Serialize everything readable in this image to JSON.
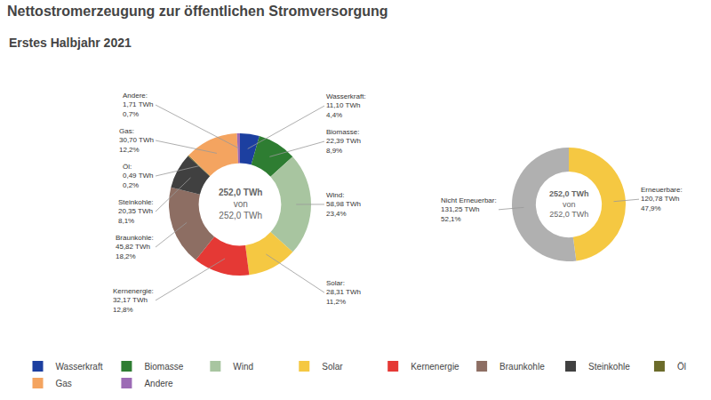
{
  "chart_data": [
    {
      "type": "pie",
      "title": "Nettostromerzeugung zur öffentlichen Stromversorgung",
      "subtitle": "Erstes Halbjahr 2021",
      "categories": [
        "Wasserkraft",
        "Biomasse",
        "Wind",
        "Solar",
        "Kernenergie",
        "Braunkohle",
        "Steinkohle",
        "Öl",
        "Gas",
        "Andere"
      ],
      "annotation_labels": [
        "Wasserkraft:",
        "Biomasse:",
        "Wind:",
        "Solar:",
        "Kernenergie:",
        "Braunkohle:",
        "Steinkohle:",
        "Öl:",
        "Gas:",
        "Andere:"
      ],
      "values": [
        11.1,
        22.39,
        58.98,
        28.31,
        32.17,
        45.82,
        20.35,
        0.49,
        30.7,
        1.71
      ],
      "value_labels": [
        "11,10 TWh",
        "22,39 TWh",
        "58,98 TWh",
        "28,31 TWh",
        "32,17 TWh",
        "45,82 TWh",
        "20,35 TWh",
        "0,49 TWh",
        "30,70 TWh",
        "1,71 TWh"
      ],
      "percent_labels": [
        "4,4%",
        "8,9%",
        "23,4%",
        "11,2%",
        "12,8%",
        "18,2%",
        "8,1%",
        "0,2%",
        "12,2%",
        "0,7%"
      ],
      "colors": [
        "#1c3fa0",
        "#2e7d32",
        "#a8c5a0",
        "#f5c842",
        "#e53935",
        "#8d6e63",
        "#404040",
        "#6b6b2a",
        "#f4a460",
        "#9c6bb5"
      ],
      "annotations": [
        "252,0 TWh",
        "von",
        "252,0 TWh"
      ],
      "legend": "bottom"
    },
    {
      "type": "pie",
      "categories": [
        "Erneuerbare:",
        "Nicht Erneuerbar:"
      ],
      "values": [
        120.78,
        131.25
      ],
      "value_labels": [
        "120,78 TWh",
        "131,25 TWh"
      ],
      "percent_labels": [
        "47,9%",
        "52,1%"
      ],
      "colors": [
        "#f5c842",
        "#b0b0b0"
      ],
      "annotations": [
        "252,0 TWh",
        "von",
        "252,0 TWh"
      ]
    }
  ]
}
